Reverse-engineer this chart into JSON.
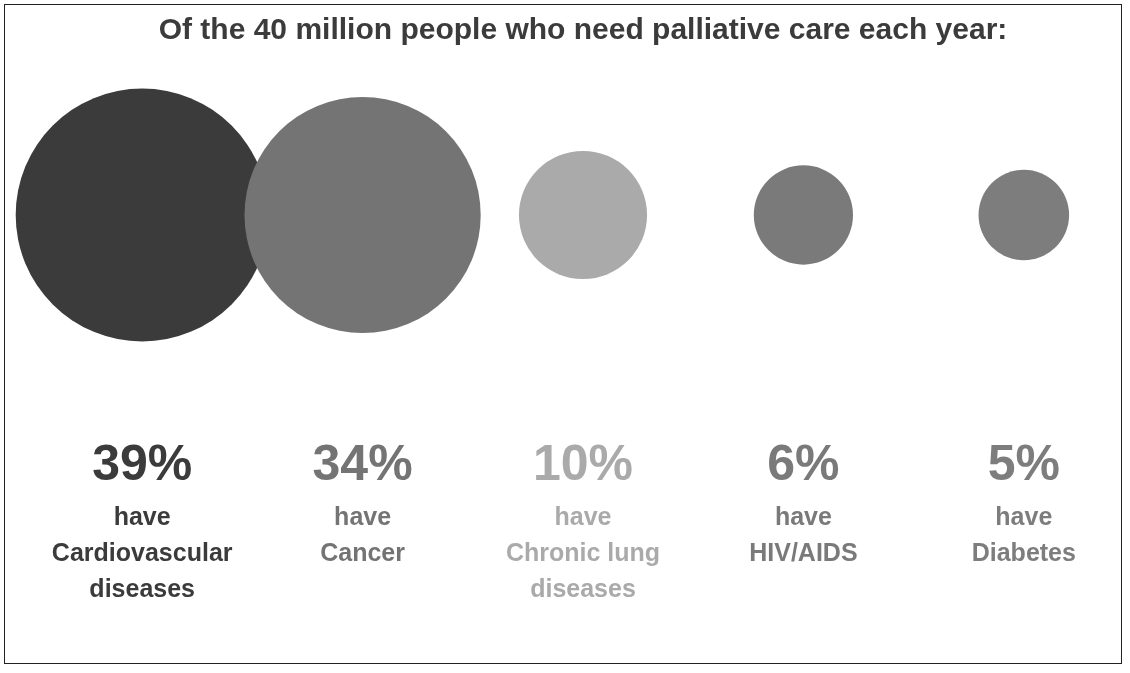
{
  "chart_data": {
    "type": "other",
    "title": "Of the 40 million people who need palliative care each year:",
    "categories": [
      "have Cardiovascular diseases",
      "have Cancer",
      "have Chronic lung diseases",
      "have HIV/AIDS",
      "have Diabetes"
    ],
    "values": [
      39,
      34,
      10,
      6,
      5
    ],
    "value_labels": [
      "39%",
      "34%",
      "10%",
      "6%",
      "5%"
    ],
    "colors": [
      "#3b3b3b",
      "#747474",
      "#aaaaaa",
      "#7a7a7a",
      "#7d7d7d"
    ]
  }
}
